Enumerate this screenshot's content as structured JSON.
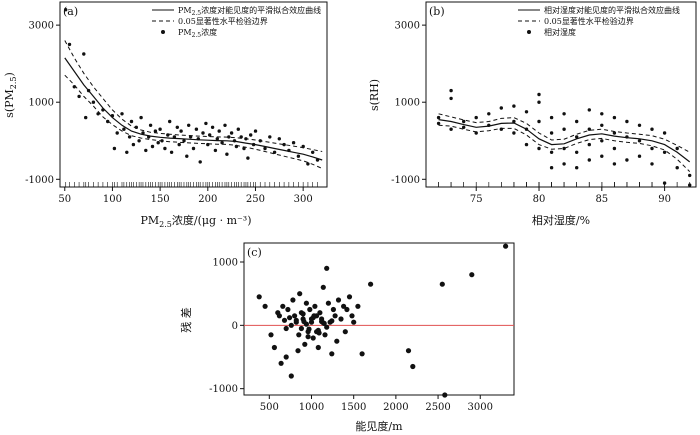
{
  "chart_data": [
    {
      "type": "scatter",
      "panel_label": "(a)",
      "ylabel_main": "s(PM",
      "ylabel_sub": "2.5",
      "ylabel_end": ")",
      "xlabel_main": "PM",
      "xlabel_sub": "2.5",
      "xlabel_end": "浓度/(μg · m⁻³)",
      "xlim": [
        45,
        325
      ],
      "ylim": [
        -1200,
        3600
      ],
      "xticks": [
        50,
        100,
        150,
        200,
        250,
        300
      ],
      "yticks": [
        -1000,
        1000,
        3000
      ],
      "legend": {
        "placement": "top-right",
        "entries": [
          {
            "style": "solid",
            "label_main": "PM",
            "label_sub": "2.5",
            "label_end": "浓度对能见度的平滑拟合效应曲线"
          },
          {
            "style": "dashed",
            "label_main": "0.05显著性水平检验边界",
            "label_sub": "",
            "label_end": ""
          },
          {
            "style": "dot",
            "label_main": "PM",
            "label_sub": "2.5",
            "label_end": "浓度"
          }
        ]
      },
      "curve": {
        "x": [
          50,
          60,
          70,
          80,
          90,
          100,
          110,
          120,
          130,
          140,
          150,
          160,
          170,
          180,
          190,
          200,
          210,
          220,
          230,
          240,
          250,
          260,
          270,
          280,
          290,
          300,
          310,
          320
        ],
        "fit": [
          2150,
          1800,
          1450,
          1150,
          850,
          600,
          400,
          250,
          170,
          120,
          90,
          70,
          55,
          40,
          25,
          15,
          5,
          0,
          -20,
          -60,
          -100,
          -150,
          -200,
          -250,
          -300,
          -350,
          -420,
          -500
        ],
        "upper": [
          2600,
          2150,
          1750,
          1400,
          1100,
          800,
          560,
          380,
          280,
          220,
          190,
          170,
          150,
          135,
          120,
          110,
          100,
          95,
          80,
          50,
          20,
          -20,
          -60,
          -100,
          -140,
          -180,
          -230,
          -280
        ],
        "lower": [
          1700,
          1450,
          1150,
          900,
          620,
          420,
          250,
          130,
          70,
          30,
          0,
          -25,
          -40,
          -55,
          -70,
          -80,
          -90,
          -95,
          -120,
          -170,
          -220,
          -280,
          -340,
          -400,
          -460,
          -520,
          -610,
          -720
        ]
      },
      "points": {
        "x": [
          51,
          55,
          60,
          65,
          70,
          72,
          75,
          80,
          85,
          90,
          95,
          100,
          102,
          105,
          110,
          112,
          115,
          118,
          120,
          122,
          125,
          128,
          130,
          132,
          135,
          138,
          140,
          142,
          145,
          148,
          150,
          152,
          155,
          158,
          160,
          162,
          165,
          168,
          170,
          172,
          175,
          178,
          180,
          182,
          185,
          188,
          190,
          192,
          195,
          198,
          200,
          202,
          205,
          208,
          210,
          212,
          215,
          218,
          220,
          222,
          225,
          228,
          230,
          232,
          235,
          238,
          240,
          242,
          245,
          248,
          250,
          255,
          260,
          265,
          270,
          275,
          280,
          285,
          290,
          295,
          300,
          305,
          310,
          315
        ],
        "y": [
          3400,
          2500,
          1400,
          1150,
          2250,
          600,
          1300,
          1000,
          700,
          800,
          500,
          650,
          -200,
          200,
          700,
          300,
          -300,
          100,
          500,
          -100,
          350,
          0,
          600,
          200,
          -250,
          100,
          400,
          -150,
          250,
          -50,
          300,
          0,
          -200,
          150,
          500,
          -300,
          100,
          350,
          -100,
          250,
          0,
          -400,
          400,
          100,
          -200,
          300,
          50,
          -550,
          200,
          450,
          -100,
          150,
          350,
          -250,
          50,
          250,
          -50,
          400,
          -350,
          100,
          200,
          0,
          -150,
          300,
          100,
          -200,
          50,
          -450,
          150,
          -100,
          250,
          0,
          -200,
          100,
          -300,
          50,
          -100,
          -250,
          -50,
          -400,
          -150,
          -600,
          -300,
          -500
        ]
      }
    },
    {
      "type": "scatter",
      "panel_label": "(b)",
      "ylabel": "s(RH)",
      "xlabel": "相对湿度/%",
      "xlim": [
        71,
        92.5
      ],
      "ylim": [
        -1200,
        3600
      ],
      "xticks": [
        75,
        80,
        85,
        90
      ],
      "yticks": [
        -1000,
        1000,
        3000
      ],
      "legend": {
        "placement": "top-right",
        "entries": [
          {
            "style": "solid",
            "label": "相对湿度对能见度的平滑拟合效应曲线"
          },
          {
            "style": "dashed",
            "label": "0.05显著性水平检验边界"
          },
          {
            "style": "dot",
            "label": "相对湿度"
          }
        ]
      },
      "curve": {
        "x": [
          72,
          73,
          74,
          75,
          76,
          77,
          78,
          79,
          80,
          81,
          82,
          83,
          84,
          85,
          86,
          87,
          88,
          89,
          90,
          91,
          92
        ],
        "fit": [
          550,
          500,
          420,
          350,
          380,
          450,
          460,
          300,
          50,
          -100,
          -80,
          50,
          150,
          180,
          120,
          80,
          50,
          0,
          -100,
          -300,
          -550
        ],
        "upper": [
          700,
          620,
          540,
          470,
          500,
          580,
          600,
          450,
          200,
          20,
          40,
          170,
          270,
          300,
          240,
          200,
          170,
          130,
          40,
          -120,
          -300
        ],
        "lower": [
          400,
          380,
          300,
          230,
          260,
          320,
          320,
          150,
          -100,
          -220,
          -200,
          -70,
          30,
          60,
          0,
          -40,
          -70,
          -130,
          -240,
          -480,
          -800
        ]
      },
      "points": {
        "x": [
          72,
          72,
          73,
          73,
          73,
          74,
          74,
          75,
          75,
          76,
          76,
          77,
          77,
          78,
          78,
          78,
          79,
          79,
          79,
          80,
          80,
          80,
          80,
          81,
          81,
          81,
          81,
          82,
          82,
          82,
          82,
          83,
          83,
          83,
          83,
          84,
          84,
          84,
          84,
          85,
          85,
          85,
          85,
          86,
          86,
          86,
          86,
          87,
          87,
          87,
          88,
          88,
          88,
          89,
          89,
          89,
          90,
          90,
          90,
          91,
          91,
          92,
          92
        ],
        "y": [
          600,
          450,
          1300,
          1100,
          300,
          500,
          350,
          600,
          200,
          700,
          400,
          850,
          300,
          900,
          500,
          200,
          750,
          300,
          -100,
          1200,
          1000,
          500,
          -200,
          600,
          200,
          -300,
          -700,
          700,
          300,
          -200,
          -600,
          500,
          100,
          -300,
          -700,
          800,
          300,
          -100,
          -500,
          700,
          400,
          0,
          -400,
          600,
          200,
          -200,
          -600,
          500,
          100,
          -500,
          400,
          0,
          -400,
          300,
          -200,
          -600,
          200,
          -300,
          -1100,
          -200,
          -700,
          -900,
          -1150
        ]
      }
    },
    {
      "type": "scatter",
      "panel_label": "(c)",
      "ylabel": "残  差",
      "xlabel": "能见度/m",
      "xlim": [
        200,
        3400
      ],
      "ylim": [
        -1100,
        1300
      ],
      "xticks": [
        500,
        1000,
        1500,
        2000,
        2500,
        3000
      ],
      "yticks": [
        -1000,
        0,
        1000
      ],
      "reference_line": {
        "y": 0,
        "color": "#e05050"
      },
      "points": {
        "x": [
          380,
          450,
          520,
          560,
          600,
          620,
          640,
          660,
          680,
          700,
          720,
          740,
          760,
          780,
          800,
          820,
          840,
          860,
          880,
          900,
          920,
          940,
          960,
          980,
          1000,
          1020,
          1040,
          1060,
          1080,
          1100,
          1120,
          1140,
          1160,
          1180,
          1200,
          1220,
          1240,
          1260,
          1280,
          1300,
          1320,
          1350,
          1380,
          1400,
          1420,
          1450,
          1480,
          1500,
          1550,
          1600,
          1700,
          2150,
          2200,
          2550,
          2580,
          2900,
          3300,
          700,
          760,
          820,
          880,
          940,
          1000,
          1060,
          1120,
          1180,
          1240,
          900,
          960,
          1020,
          1080,
          1140,
          850,
          910,
          970,
          1030,
          1090,
          1150
        ],
        "y": [
          450,
          300,
          -150,
          -350,
          200,
          150,
          -600,
          300,
          80,
          -500,
          250,
          120,
          -800,
          400,
          150,
          50,
          -400,
          500,
          200,
          100,
          -300,
          350,
          -100,
          250,
          50,
          -200,
          300,
          150,
          -350,
          200,
          100,
          600,
          -150,
          900,
          350,
          50,
          -450,
          250,
          150,
          -250,
          400,
          100,
          300,
          -100,
          250,
          450,
          150,
          50,
          300,
          -450,
          650,
          -400,
          -650,
          650,
          -1100,
          800,
          1250,
          -50,
          0,
          80,
          -50,
          20,
          100,
          -100,
          60,
          -30,
          70,
          180,
          -180,
          120,
          -80,
          40,
          -150,
          60,
          -60,
          150,
          -120,
          30
        ]
      }
    }
  ]
}
